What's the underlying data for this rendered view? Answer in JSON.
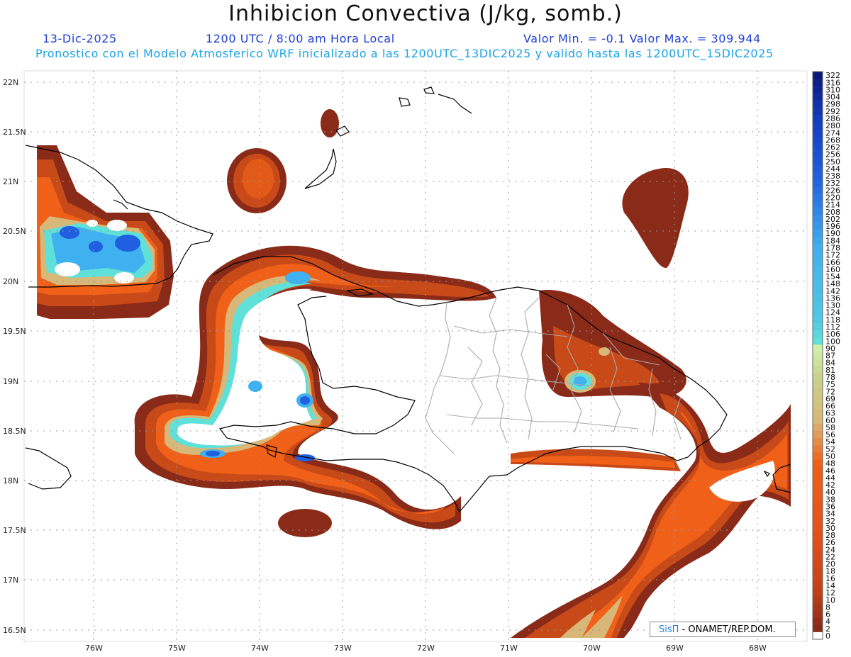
{
  "title": "Inhibicion Convectiva (J/kg, somb.)",
  "header": {
    "date": "13-Dic-2025",
    "time": "1200 UTC / 8:00 am Hora Local",
    "min_max": "Valor Min. = -0.1  Valor Max. = 309.944",
    "forecast": "Pronostico con el Modelo Atmosferico WRF inicializado a las 1200UTC_13DIC2025 y valido hasta las  1200UTC_15DIC2025"
  },
  "lat_labels": [
    "22N",
    "21.5N",
    "21N",
    "20.5N",
    "20N",
    "19.5N",
    "19N",
    "18.5N",
    "18N",
    "17.5N",
    "17N",
    "16.5N"
  ],
  "lon_labels": [
    "76W",
    "75W",
    "74W",
    "73W",
    "72W",
    "71W",
    "70W",
    "69W",
    "68W"
  ],
  "colorbar": {
    "labels": [
      "322",
      "316",
      "310",
      "304",
      "298",
      "292",
      "286",
      "280",
      "274",
      "268",
      "262",
      "256",
      "250",
      "244",
      "238",
      "232",
      "226",
      "220",
      "214",
      "208",
      "202",
      "196",
      "190",
      "184",
      "178",
      "172",
      "166",
      "160",
      "154",
      "148",
      "142",
      "136",
      "130",
      "124",
      "118",
      "112",
      "106",
      "100",
      "90",
      "87",
      "84",
      "81",
      "78",
      "75",
      "72",
      "69",
      "66",
      "63",
      "60",
      "58",
      "56",
      "54",
      "52",
      "50",
      "48",
      "46",
      "44",
      "42",
      "40",
      "38",
      "36",
      "34",
      "32",
      "30",
      "28",
      "26",
      "24",
      "22",
      "20",
      "18",
      "16",
      "14",
      "12",
      "10",
      "8",
      "6",
      "4",
      "2",
      "0"
    ],
    "colors": {
      "dark_blue": "#0a1a7a",
      "blue": "#1f5fe0",
      "light_blue": "#3fb0f0",
      "cyan": "#5fe0d8",
      "pale_green": "#d0f0a8",
      "tan": "#d8b878",
      "orange": "#f06018",
      "red_brown": "#c04018",
      "dark_brown": "#8a2a18"
    }
  },
  "credit": {
    "sis": "SisΠ",
    "text": " - ONAMET/REP.DOM."
  }
}
